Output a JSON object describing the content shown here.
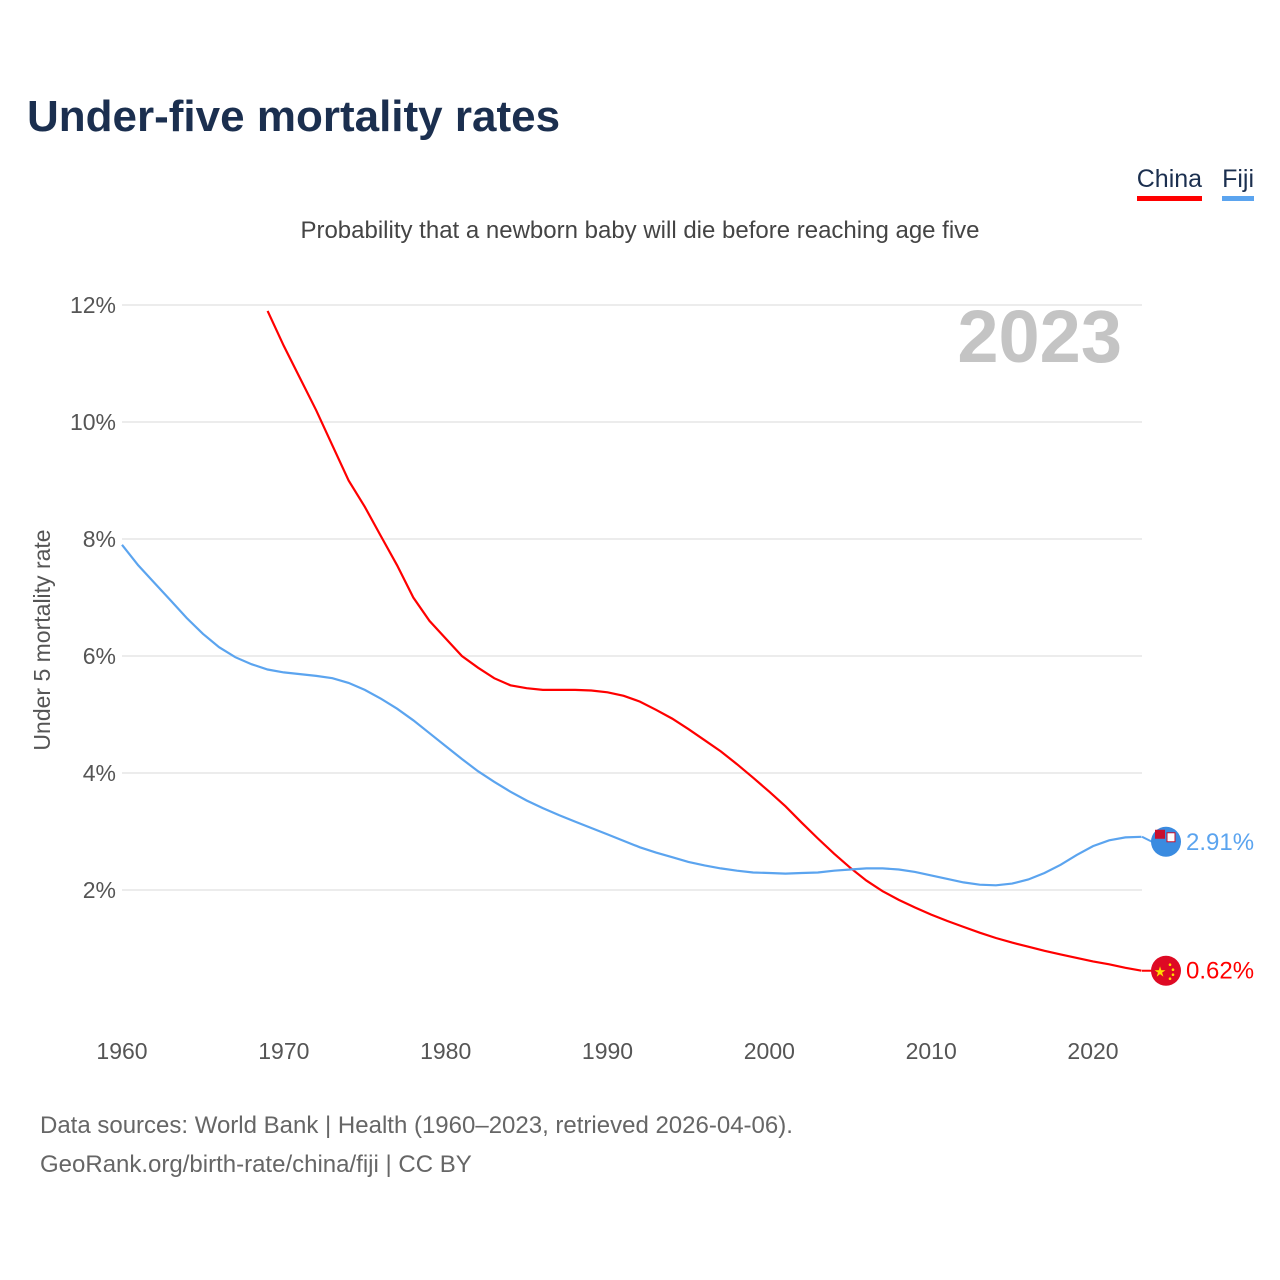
{
  "title": "Under-five mortality rates",
  "subtitle": "Probability that a newborn baby will die before reaching age five",
  "source_line1": "Data sources: World Bank | Health (1960–2023, retrieved 2026-04-06).",
  "source_line2": "GeoRank.org/birth-rate/china/fiji | CC BY",
  "chart_data": {
    "type": "line",
    "title": "Under-five mortality rates",
    "ylabel": "Under 5 mortality rate",
    "xlabel": "",
    "year_label": "2023",
    "xlim": [
      1960,
      2023
    ],
    "ylim": [
      0,
      12
    ],
    "x_ticks": [
      "1960",
      "1970",
      "1980",
      "1990",
      "2000",
      "2010",
      "2020"
    ],
    "y_ticks": [
      "2%",
      "4%",
      "6%",
      "8%",
      "10%",
      "12%"
    ],
    "legend_position": "top-right",
    "series": [
      {
        "name": "China",
        "color": "#ff0000",
        "end_label": "0.62%",
        "start_year": 1969,
        "values": [
          11.9,
          11.3,
          10.75,
          10.2,
          9.6,
          9.0,
          8.55,
          8.05,
          7.55,
          7.0,
          6.6,
          6.3,
          6.0,
          5.8,
          5.62,
          5.5,
          5.45,
          5.42,
          5.42,
          5.42,
          5.41,
          5.38,
          5.32,
          5.22,
          5.08,
          4.93,
          4.75,
          4.56,
          4.37,
          4.15,
          3.92,
          3.68,
          3.43,
          3.15,
          2.88,
          2.62,
          2.38,
          2.16,
          1.98,
          1.83,
          1.7,
          1.58,
          1.47,
          1.37,
          1.27,
          1.18,
          1.1,
          1.03,
          0.96,
          0.9,
          0.84,
          0.78,
          0.73,
          0.67,
          0.62
        ]
      },
      {
        "name": "Fiji",
        "color": "#5ba4ef",
        "end_label": "2.91%",
        "start_year": 1960,
        "values": [
          7.9,
          7.55,
          7.25,
          6.95,
          6.65,
          6.38,
          6.15,
          5.98,
          5.86,
          5.77,
          5.72,
          5.69,
          5.66,
          5.62,
          5.54,
          5.42,
          5.27,
          5.1,
          4.9,
          4.68,
          4.46,
          4.24,
          4.03,
          3.85,
          3.68,
          3.53,
          3.4,
          3.28,
          3.17,
          3.06,
          2.95,
          2.84,
          2.73,
          2.64,
          2.56,
          2.48,
          2.42,
          2.37,
          2.33,
          2.3,
          2.29,
          2.28,
          2.29,
          2.3,
          2.33,
          2.35,
          2.37,
          2.37,
          2.35,
          2.31,
          2.25,
          2.19,
          2.13,
          2.09,
          2.08,
          2.11,
          2.18,
          2.29,
          2.43,
          2.6,
          2.75,
          2.85,
          2.9,
          2.91
        ]
      }
    ]
  }
}
